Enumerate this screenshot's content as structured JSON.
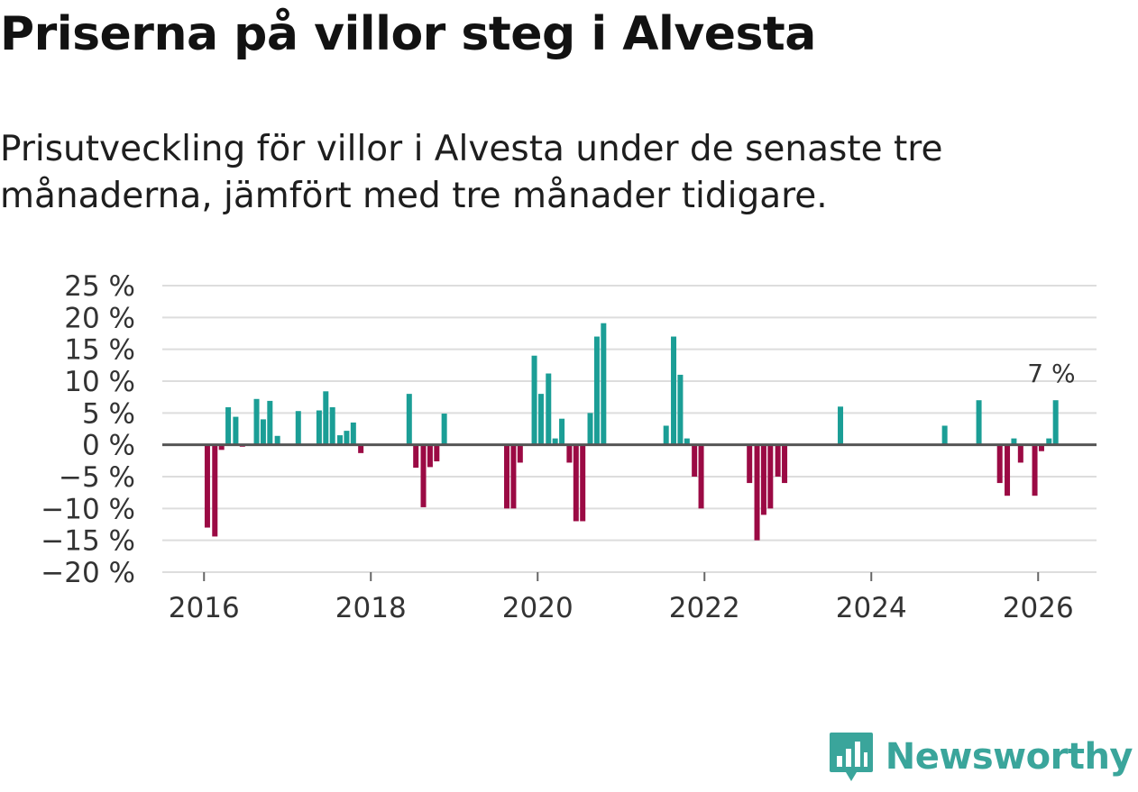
{
  "header": {
    "title": "Priserna på villor steg i Alvesta",
    "subtitle": "Prisutveckling för villor i Alvesta under de senaste tre månaderna, jämfört med tre månader tidigare."
  },
  "brand": {
    "name": "Newsworthy",
    "icon": "newsworthy-logo-icon"
  },
  "colors": {
    "positive": "#1b9e96",
    "negative": "#9b0a44",
    "grid": "#dddddd",
    "zero": "#555555"
  },
  "chart_data": {
    "type": "bar",
    "title": "Priserna på villor steg i Alvesta",
    "xlabel": "",
    "ylabel": "",
    "ylim": [
      -20,
      25
    ],
    "xlim": [
      2015.5,
      2026.7
    ],
    "yticks": [
      25,
      20,
      15,
      10,
      5,
      0,
      -5,
      -10,
      -15,
      -20
    ],
    "ytick_labels": [
      "25 %",
      "20 %",
      "15 %",
      "10 %",
      "5 %",
      "0 %",
      "−5 %",
      "−10 %",
      "−15 %",
      "−20 %"
    ],
    "xticks": [
      2016,
      2018,
      2020,
      2022,
      2024,
      2026
    ],
    "xtick_labels": [
      "2016",
      "2018",
      "2020",
      "2022",
      "2024",
      "2026"
    ],
    "annotation": {
      "text": "7 %",
      "x": 2026.17,
      "y": 7
    },
    "series": [
      {
        "name": "Prisutveckling",
        "points": [
          {
            "x": 2016.04,
            "y": -13
          },
          {
            "x": 2016.13,
            "y": -14.4
          },
          {
            "x": 2016.21,
            "y": -0.8
          },
          {
            "x": 2016.29,
            "y": 5.9
          },
          {
            "x": 2016.38,
            "y": 4.4
          },
          {
            "x": 2016.46,
            "y": -0.3
          },
          {
            "x": 2016.63,
            "y": 7.2
          },
          {
            "x": 2016.71,
            "y": 4
          },
          {
            "x": 2016.79,
            "y": 6.9
          },
          {
            "x": 2016.88,
            "y": 1.4
          },
          {
            "x": 2017.13,
            "y": 5.3
          },
          {
            "x": 2017.38,
            "y": 5.4
          },
          {
            "x": 2017.46,
            "y": 8.4
          },
          {
            "x": 2017.54,
            "y": 5.9
          },
          {
            "x": 2017.63,
            "y": 1.5
          },
          {
            "x": 2017.71,
            "y": 2.2
          },
          {
            "x": 2017.79,
            "y": 3.5
          },
          {
            "x": 2017.88,
            "y": -1.3
          },
          {
            "x": 2018.46,
            "y": 8
          },
          {
            "x": 2018.54,
            "y": -3.6
          },
          {
            "x": 2018.63,
            "y": -9.8
          },
          {
            "x": 2018.71,
            "y": -3.5
          },
          {
            "x": 2018.79,
            "y": -2.6
          },
          {
            "x": 2018.88,
            "y": 4.9
          },
          {
            "x": 2019.63,
            "y": -10
          },
          {
            "x": 2019.71,
            "y": -10
          },
          {
            "x": 2019.79,
            "y": -2.8
          },
          {
            "x": 2019.96,
            "y": 14
          },
          {
            "x": 2020.04,
            "y": 8
          },
          {
            "x": 2020.13,
            "y": 11.2
          },
          {
            "x": 2020.21,
            "y": 1
          },
          {
            "x": 2020.29,
            "y": 4.1
          },
          {
            "x": 2020.38,
            "y": -2.8
          },
          {
            "x": 2020.46,
            "y": -12
          },
          {
            "x": 2020.54,
            "y": -12
          },
          {
            "x": 2020.63,
            "y": 5
          },
          {
            "x": 2020.71,
            "y": 17
          },
          {
            "x": 2020.79,
            "y": 19.1
          },
          {
            "x": 2021.54,
            "y": 3
          },
          {
            "x": 2021.63,
            "y": 17
          },
          {
            "x": 2021.71,
            "y": 11
          },
          {
            "x": 2021.79,
            "y": 1
          },
          {
            "x": 2021.88,
            "y": -5
          },
          {
            "x": 2021.96,
            "y": -10
          },
          {
            "x": 2022.54,
            "y": -6
          },
          {
            "x": 2022.63,
            "y": -15
          },
          {
            "x": 2022.71,
            "y": -11
          },
          {
            "x": 2022.79,
            "y": -10
          },
          {
            "x": 2022.88,
            "y": -5
          },
          {
            "x": 2022.96,
            "y": -6
          },
          {
            "x": 2023.63,
            "y": 6
          },
          {
            "x": 2024.88,
            "y": 3
          },
          {
            "x": 2025.29,
            "y": 7
          },
          {
            "x": 2025.54,
            "y": -6
          },
          {
            "x": 2025.63,
            "y": -8
          },
          {
            "x": 2025.71,
            "y": 1
          },
          {
            "x": 2025.79,
            "y": -2.8
          },
          {
            "x": 2025.96,
            "y": -8
          },
          {
            "x": 2026.04,
            "y": -1
          },
          {
            "x": 2026.13,
            "y": 1
          },
          {
            "x": 2026.21,
            "y": 7
          }
        ]
      }
    ]
  }
}
